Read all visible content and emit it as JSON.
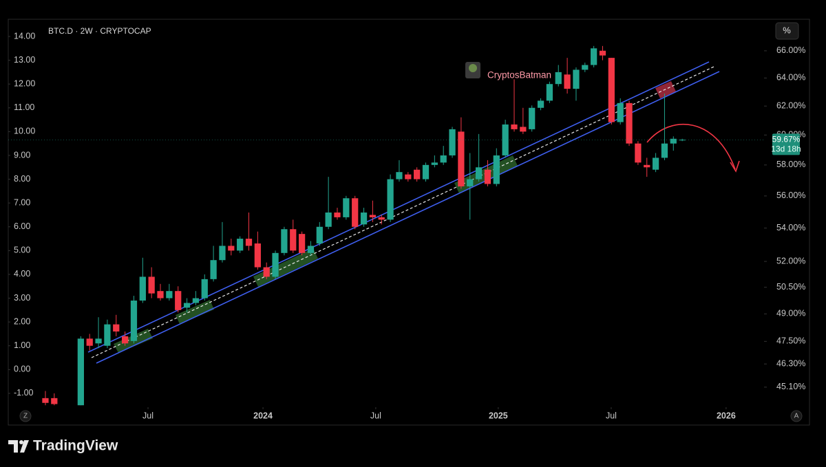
{
  "chart_data": {
    "type": "candlestick",
    "title": "BTC.D · 2W · CRYPTOCAP",
    "annotation": "CryptosBatman",
    "categories": [
      null,
      null,
      null,
      null,
      null,
      null,
      null,
      null,
      null,
      null,
      null,
      null,
      null,
      null,
      null,
      null,
      null,
      null,
      null,
      null,
      null,
      null,
      null,
      null,
      null,
      null,
      null,
      null,
      null,
      null,
      null,
      null,
      null,
      null,
      null,
      null,
      null,
      null,
      null,
      null,
      null,
      null,
      null,
      null,
      null,
      null,
      null,
      null,
      null,
      null,
      null,
      null,
      null,
      null,
      null,
      null,
      null,
      null,
      null,
      null,
      null,
      null,
      null,
      null,
      null,
      null,
      null,
      null,
      null,
      null,
      null,
      null,
      null
    ],
    "open": [
      -1.2,
      -1.2,
      null,
      null,
      -1.5,
      1.3,
      1.1,
      1.0,
      1.9,
      1.4,
      1.2,
      2.9,
      3.9,
      3.3,
      3.0,
      3.3,
      2.6,
      2.8,
      3.0,
      3.8,
      4.6,
      5.2,
      5.0,
      5.5,
      5.3,
      4.3,
      3.9,
      4.9,
      5.9,
      5.7,
      4.9,
      5.3,
      6.0,
      6.6,
      6.4,
      7.2,
      6.1,
      6.5,
      6.4,
      6.3,
      8.0,
      8.2,
      8.4,
      8.0,
      8.6,
      8.7,
      9.0,
      10.0,
      7.7,
      8.0,
      8.4,
      7.8,
      9.0,
      10.3,
      10.2,
      10.1,
      11.0,
      11.3,
      12.0,
      12.4,
      11.8,
      12.6,
      12.8,
      13.4,
      13.1,
      10.4,
      11.2,
      9.5,
      8.6,
      8.4,
      8.9,
      9.5,
      9.65
    ],
    "high": [
      -0.9,
      -1.0,
      null,
      null,
      1.4,
      1.5,
      2.2,
      2.1,
      2.3,
      1.6,
      3.1,
      4.7,
      4.3,
      3.6,
      3.6,
      3.5,
      3.0,
      3.3,
      4.0,
      5.2,
      6.2,
      5.5,
      5.6,
      6.6,
      5.8,
      4.5,
      5.0,
      6.0,
      6.3,
      5.8,
      5.4,
      6.2,
      8.1,
      6.8,
      7.3,
      7.3,
      6.8,
      7.1,
      6.5,
      8.2,
      8.8,
      8.3,
      8.5,
      8.7,
      9.0,
      9.4,
      10.2,
      10.6,
      9.1,
      9.9,
      8.8,
      9.3,
      10.5,
      12.2,
      11.0,
      11.1,
      11.4,
      12.1,
      12.8,
      13.1,
      12.7,
      12.9,
      13.6,
      13.6,
      13.1,
      11.4,
      11.3,
      9.6,
      8.9,
      9.1,
      11.6,
      9.8,
      9.7
    ],
    "low": [
      -1.5,
      -1.5,
      null,
      null,
      -1.5,
      0.8,
      0.9,
      0.9,
      1.4,
      1.0,
      1.1,
      2.8,
      3.0,
      2.9,
      2.9,
      2.4,
      2.4,
      2.7,
      2.9,
      3.7,
      4.5,
      4.8,
      4.9,
      5.0,
      4.2,
      3.8,
      3.8,
      4.8,
      4.9,
      4.8,
      4.8,
      5.2,
      5.9,
      6.3,
      6.3,
      5.9,
      6.0,
      6.2,
      6.1,
      6.2,
      7.9,
      7.9,
      7.9,
      7.9,
      8.5,
      8.6,
      8.9,
      7.6,
      6.3,
      7.9,
      7.7,
      7.7,
      8.9,
      10.0,
      9.9,
      10.0,
      10.9,
      11.2,
      11.9,
      11.6,
      11.3,
      12.5,
      12.7,
      13.0,
      10.3,
      10.3,
      9.4,
      8.6,
      8.1,
      8.3,
      8.8,
      9.2,
      9.6
    ],
    "close": [
      -1.4,
      -1.45,
      null,
      null,
      1.3,
      1.0,
      1.3,
      1.9,
      1.6,
      1.1,
      2.9,
      3.9,
      3.2,
      3.0,
      3.3,
      2.5,
      2.8,
      3.0,
      3.8,
      4.6,
      5.2,
      5.0,
      5.5,
      5.2,
      4.3,
      3.9,
      4.9,
      5.9,
      5.0,
      4.9,
      5.2,
      6.0,
      6.6,
      6.4,
      7.2,
      6.0,
      6.6,
      6.4,
      6.3,
      8.0,
      8.3,
      8.0,
      8.0,
      8.6,
      8.7,
      9.0,
      10.1,
      7.7,
      8.0,
      8.5,
      7.8,
      9.0,
      10.3,
      10.1,
      10.0,
      11.0,
      11.3,
      12.0,
      12.5,
      11.8,
      12.6,
      12.8,
      13.5,
      13.2,
      10.4,
      11.2,
      9.5,
      8.7,
      8.5,
      8.9,
      9.5,
      9.7,
      9.66
    ],
    "up_color": "#22a58f",
    "down_color": "#f23645",
    "xlim": [
      -4.2,
      81.25
    ],
    "xticks": [
      {
        "value": 11.6,
        "label": "Jul"
      },
      {
        "value": 24.6,
        "label": "2024"
      },
      {
        "value": 37.35,
        "label": "Jul"
      },
      {
        "value": 51.2,
        "label": "2025"
      },
      {
        "value": 63.97,
        "label": "Jul"
      },
      {
        "value": 76.96,
        "label": "2026"
      }
    ],
    "ylim": [
      -1.58,
      14.52
    ],
    "yticks": [
      {
        "value": 14,
        "label": "14.00"
      },
      {
        "value": 13,
        "label": "13.00"
      },
      {
        "value": 12,
        "label": "12.00"
      },
      {
        "value": 11,
        "label": "11.00"
      },
      {
        "value": 10,
        "label": "10.00"
      },
      {
        "value": 9,
        "label": "9.00"
      },
      {
        "value": 8,
        "label": "8.00"
      },
      {
        "value": 7,
        "label": "7.00"
      },
      {
        "value": 6,
        "label": "6.00"
      },
      {
        "value": 5,
        "label": "5.00"
      },
      {
        "value": 4,
        "label": "4.00"
      },
      {
        "value": 3,
        "label": "3.00"
      },
      {
        "value": 2,
        "label": "2.00"
      },
      {
        "value": 1,
        "label": "1.00"
      },
      {
        "value": 0,
        "label": "0.00"
      },
      {
        "value": -1,
        "label": "-1.00"
      }
    ],
    "y2lim": [
      44.09,
      68.03
    ],
    "y2scale": "log",
    "y2ticks": [
      {
        "value": 66,
        "label": "66.00%"
      },
      {
        "value": 64,
        "label": "64.00%"
      },
      {
        "value": 62,
        "label": "62.00%"
      },
      {
        "value": 60,
        "label": "60.00%"
      },
      {
        "value": 58,
        "label": "58.00%"
      },
      {
        "value": 56,
        "label": "56.00%"
      },
      {
        "value": 54,
        "label": "54.00%"
      },
      {
        "value": 52,
        "label": "52.00%"
      },
      {
        "value": 50.5,
        "label": "50.50%"
      },
      {
        "value": 49,
        "label": "49.00%"
      },
      {
        "value": 47.5,
        "label": "47.50%"
      },
      {
        "value": 46.3,
        "label": "46.30%"
      },
      {
        "value": 45.1,
        "label": "45.10%"
      }
    ],
    "last_price": {
      "value": 59.67,
      "label": "59.67%"
    },
    "countdown": "13d 18h"
  },
  "scale_button": "%",
  "left_button": "Z",
  "right_button": "A",
  "brand": "TradingView"
}
